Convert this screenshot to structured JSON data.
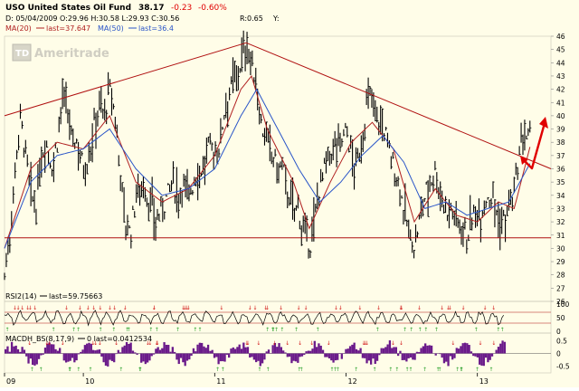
{
  "header": {
    "symbol_name": "USO United States Oil Fund",
    "last": "38.17",
    "change": "-0.23",
    "change_pct": "-0.60%",
    "ohlc": "D: 05/04/2009 O:29.96 H:30.58 L:29.93 C:30.56",
    "r_label": "R:0.65",
    "y_label": "Y:",
    "ma20_label": "MA(20)",
    "ma20_last": "last=37.647",
    "ma50_label": "MA(50)",
    "ma50_last": "last=36.4"
  },
  "watermark": "Ameritrade",
  "colors": {
    "background": "#fffde8",
    "price_bar": "#000000",
    "ma20": "#b02020",
    "ma50": "#2a55c8",
    "trendline": "#b01010",
    "arrow": "#e00000",
    "down_change": "#e00000",
    "macd_hist": "#6a1a8a",
    "buy_marker": "#2aa02a",
    "sell_marker": "#d01010"
  },
  "chart_data": [
    {
      "type": "line",
      "panel": "price",
      "xlabel": "",
      "ylabel": "",
      "x_ticks": [
        "09",
        "10",
        "11",
        "12",
        "13"
      ],
      "y_ticks": [
        26,
        27,
        28,
        29,
        30,
        31,
        32,
        33,
        34,
        35,
        36,
        37,
        38,
        39,
        40,
        41,
        42,
        43,
        44,
        45,
        46
      ],
      "ylim": [
        26,
        46
      ],
      "x_range": [
        0,
        100
      ],
      "x_positions_of_ticks": [
        0,
        15,
        40,
        65,
        90
      ],
      "series": [
        {
          "name": "price",
          "points": [
            [
              0,
              28
            ],
            [
              1,
              31
            ],
            [
              2,
              36
            ],
            [
              3,
              40
            ],
            [
              4,
              37
            ],
            [
              5,
              34
            ],
            [
              6,
              33
            ],
            [
              7,
              37
            ],
            [
              8,
              38
            ],
            [
              9,
              36
            ],
            [
              10,
              38
            ],
            [
              11,
              41.5
            ],
            [
              12,
              40
            ],
            [
              13,
              38
            ],
            [
              14,
              38
            ],
            [
              15,
              36
            ],
            [
              16,
              37
            ],
            [
              17,
              39
            ],
            [
              18,
              41
            ],
            [
              19,
              40
            ],
            [
              20,
              42
            ],
            [
              21,
              40
            ],
            [
              22,
              36
            ],
            [
              23,
              32
            ],
            [
              24,
              31
            ],
            [
              25,
              34
            ],
            [
              26,
              35
            ],
            [
              27,
              34
            ],
            [
              28,
              33
            ],
            [
              29,
              32
            ],
            [
              30,
              33
            ],
            [
              31,
              34
            ],
            [
              32,
              35
            ],
            [
              33,
              34
            ],
            [
              34,
              35
            ],
            [
              35,
              34
            ],
            [
              36,
              35
            ],
            [
              37,
              36
            ],
            [
              38,
              36
            ],
            [
              39,
              38
            ],
            [
              40,
              37
            ],
            [
              41,
              38
            ],
            [
              42,
              41
            ],
            [
              43,
              42
            ],
            [
              44,
              43
            ],
            [
              45,
              44
            ],
            [
              46,
              45.5
            ],
            [
              47,
              44
            ],
            [
              48,
              42
            ],
            [
              49,
              39
            ],
            [
              50,
              38
            ],
            [
              51,
              37
            ],
            [
              52,
              36
            ],
            [
              53,
              36
            ],
            [
              54,
              34
            ],
            [
              55,
              33
            ],
            [
              56,
              33
            ],
            [
              57,
              31
            ],
            [
              58,
              30
            ],
            [
              59,
              32
            ],
            [
              60,
              35
            ],
            [
              61,
              36
            ],
            [
              62,
              37
            ],
            [
              63,
              38
            ],
            [
              64,
              38
            ],
            [
              65,
              39
            ],
            [
              66,
              37
            ],
            [
              67,
              36
            ],
            [
              68,
              38
            ],
            [
              69,
              41
            ],
            [
              70,
              41.5
            ],
            [
              71,
              40
            ],
            [
              72,
              39
            ],
            [
              73,
              38
            ],
            [
              74,
              36
            ],
            [
              75,
              35
            ],
            [
              76,
              33
            ],
            [
              77,
              31
            ],
            [
              78,
              30
            ],
            [
              79,
              32
            ],
            [
              80,
              34
            ],
            [
              81,
              35
            ],
            [
              82,
              36
            ],
            [
              83,
              34
            ],
            [
              84,
              33
            ],
            [
              85,
              33
            ],
            [
              86,
              32
            ],
            [
              87,
              32
            ],
            [
              88,
              31
            ],
            [
              89,
              32
            ],
            [
              90,
              33
            ],
            [
              91,
              33
            ],
            [
              92,
              34
            ],
            [
              93,
              34
            ],
            [
              94,
              32
            ],
            [
              95,
              32
            ],
            [
              96,
              33
            ],
            [
              97,
              34
            ],
            [
              98,
              37
            ],
            [
              99,
              38.5
            ],
            [
              100,
              38.17
            ]
          ]
        },
        {
          "name": "MA(20)",
          "points": [
            [
              0,
              30
            ],
            [
              5,
              36
            ],
            [
              10,
              38
            ],
            [
              15,
              37.5
            ],
            [
              20,
              40
            ],
            [
              25,
              35
            ],
            [
              30,
              33.5
            ],
            [
              35,
              34.5
            ],
            [
              40,
              37
            ],
            [
              45,
              42
            ],
            [
              47,
              43
            ],
            [
              50,
              39
            ],
            [
              55,
              35
            ],
            [
              58,
              31.5
            ],
            [
              62,
              35
            ],
            [
              66,
              38
            ],
            [
              70,
              39.5
            ],
            [
              74,
              37.5
            ],
            [
              78,
              32
            ],
            [
              82,
              34.5
            ],
            [
              86,
              32.5
            ],
            [
              90,
              32
            ],
            [
              94,
              33.5
            ],
            [
              97,
              33
            ],
            [
              100,
              37.647
            ]
          ]
        },
        {
          "name": "MA(50)",
          "points": [
            [
              0,
              30
            ],
            [
              5,
              35
            ],
            [
              10,
              37
            ],
            [
              15,
              37.5
            ],
            [
              20,
              39
            ],
            [
              25,
              36
            ],
            [
              30,
              34
            ],
            [
              35,
              34.5
            ],
            [
              40,
              36
            ],
            [
              45,
              40
            ],
            [
              48,
              42
            ],
            [
              52,
              39
            ],
            [
              56,
              36
            ],
            [
              60,
              33.5
            ],
            [
              64,
              35
            ],
            [
              68,
              37
            ],
            [
              72,
              38.5
            ],
            [
              76,
              36.5
            ],
            [
              80,
              33
            ],
            [
              84,
              33.5
            ],
            [
              88,
              32.5
            ],
            [
              92,
              33
            ],
            [
              96,
              33.5
            ],
            [
              100,
              36.4
            ]
          ]
        },
        {
          "name": "trendline-upper-left",
          "points": [
            [
              0,
              40
            ],
            [
              46,
              45.5
            ]
          ]
        },
        {
          "name": "trendline-upper-right",
          "points": [
            [
              46,
              45.5
            ],
            [
              104,
              36
            ]
          ]
        },
        {
          "name": "support-line",
          "points": [
            [
              0,
              30.8
            ],
            [
              104,
              30.8
            ]
          ]
        }
      ]
    },
    {
      "type": "line",
      "panel": "rsi",
      "title": "RSI2(14)",
      "legend": "last=59.75663",
      "y_ticks": [
        100,
        50,
        0
      ],
      "ylim": [
        0,
        100
      ]
    },
    {
      "type": "bar",
      "panel": "macd",
      "title": "MACDH_BS(8,17,9)",
      "legend": "0 last=0.0412534",
      "y_ticks": [
        0.5,
        0,
        -0.5
      ],
      "ylim": [
        -0.7,
        0.7
      ]
    }
  ]
}
